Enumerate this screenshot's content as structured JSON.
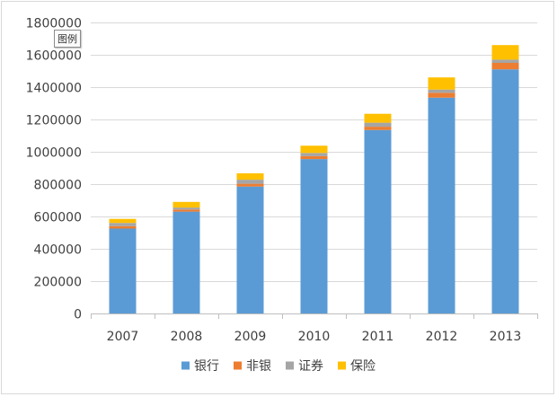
{
  "tooltip_text": "图例",
  "chart_data": {
    "type": "bar",
    "stacked": true,
    "categories": [
      "2007",
      "2008",
      "2009",
      "2010",
      "2011",
      "2012",
      "2013"
    ],
    "series": [
      {
        "name": "银行",
        "color": "#5B9BD5",
        "values": [
          525000,
          630000,
          785000,
          955000,
          1135000,
          1335000,
          1510000
        ]
      },
      {
        "name": "非银",
        "color": "#ED7D31",
        "values": [
          15000,
          13000,
          17000,
          18000,
          20000,
          30000,
          40000
        ]
      },
      {
        "name": "证券",
        "color": "#A5A5A5",
        "values": [
          20000,
          12000,
          25000,
          20000,
          25000,
          20000,
          20000
        ]
      },
      {
        "name": "保险",
        "color": "#FFC000",
        "values": [
          25000,
          35000,
          40000,
          45000,
          55000,
          75000,
          90000
        ]
      }
    ],
    "ylim": [
      0,
      1800000
    ],
    "yticks": [
      0,
      200000,
      400000,
      600000,
      800000,
      1000000,
      1200000,
      1400000,
      1600000,
      1800000
    ],
    "ytick_labels": [
      "0",
      "200000",
      "400000",
      "600000",
      "800000",
      "1000000",
      "1200000",
      "1400000",
      "1600000",
      "1800000"
    ],
    "grid": true,
    "legend_position": "bottom",
    "title": "",
    "xlabel": "",
    "ylabel": ""
  }
}
